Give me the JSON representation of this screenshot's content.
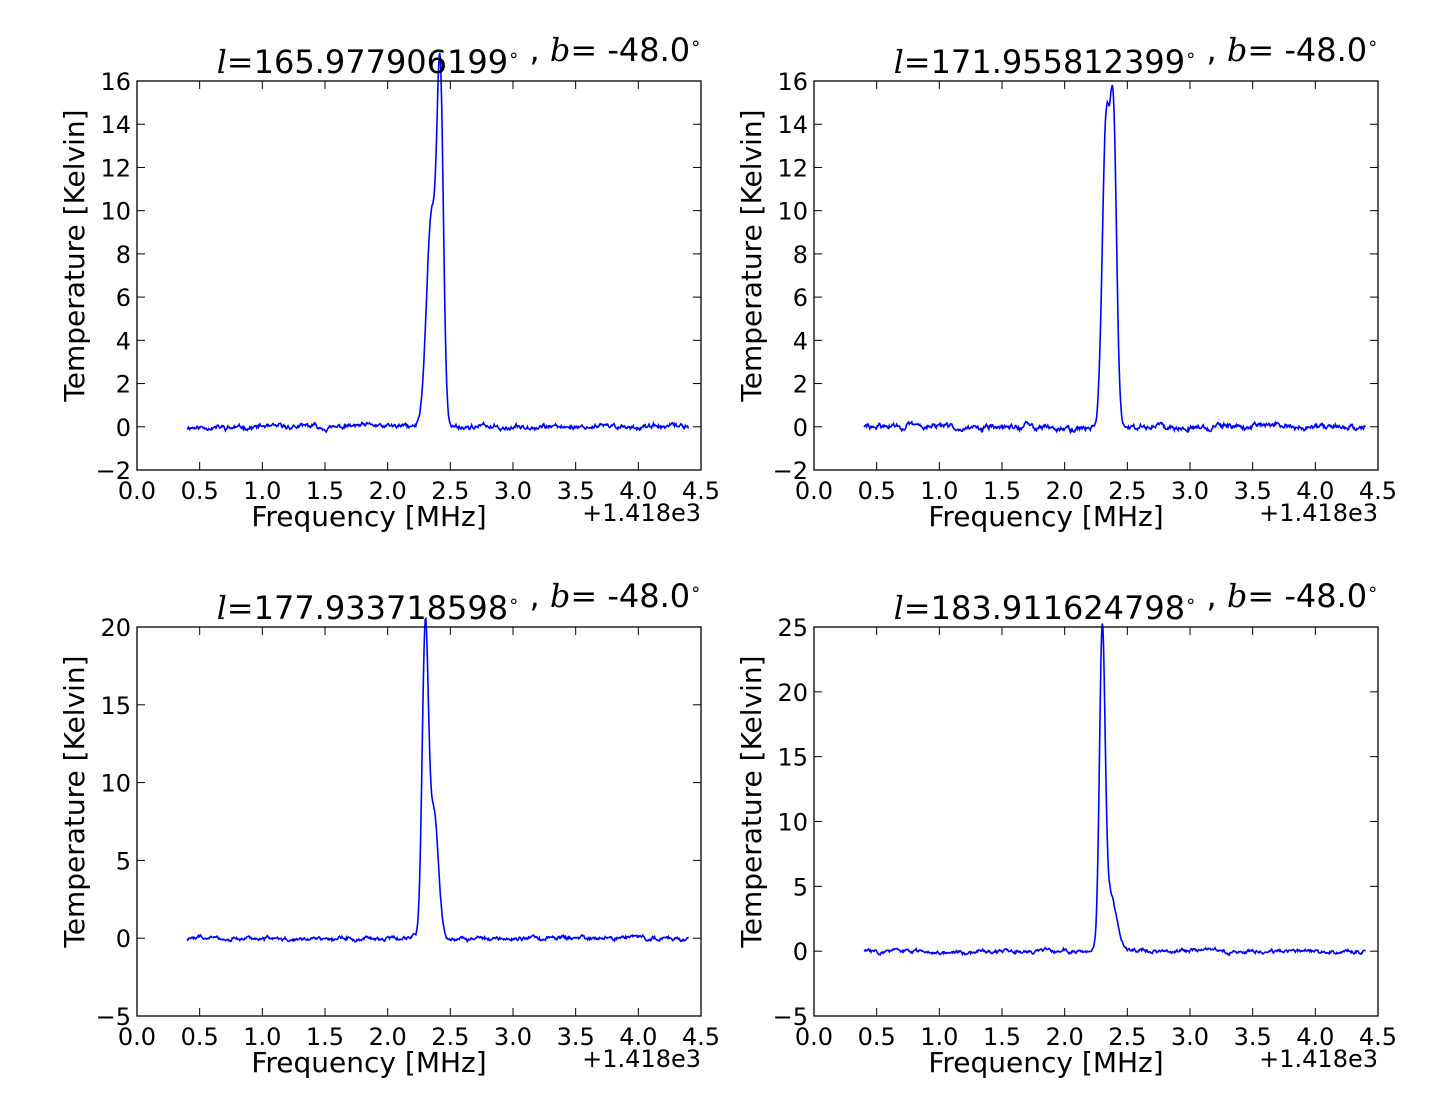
{
  "chart_data": [
    {
      "type": "line",
      "title": {
        "l_prefix": "l",
        "eq": "=",
        "l_value": "165.977906199",
        "deg": "∘",
        "sep": " , ",
        "b_prefix": "b",
        "b_value": "-48.0"
      },
      "xlabel": "Frequency [MHz]",
      "ylabel": "Temperature [Kelvin]",
      "x_offset_label": "+1.418e3",
      "xlim": [
        0.0,
        4.5
      ],
      "ylim": [
        -2,
        16
      ],
      "xticks": [
        "0.0",
        "0.5",
        "1.0",
        "1.5",
        "2.0",
        "2.5",
        "3.0",
        "3.5",
        "4.0",
        "4.5"
      ],
      "yticks": [
        "−2",
        "0",
        "2",
        "4",
        "6",
        "8",
        "10",
        "12",
        "14",
        "16"
      ],
      "x_range": [
        0.4,
        4.4
      ],
      "line_color": "#0000ff",
      "series": [
        {
          "peaks": [
            {
              "center": 2.35,
              "height": 9.8,
              "width": 0.04
            },
            {
              "center": 2.42,
              "height": 15.1,
              "width": 0.025
            }
          ],
          "noise": 0.3,
          "seed": 11
        }
      ]
    },
    {
      "type": "line",
      "title": {
        "l_prefix": "l",
        "eq": "=",
        "l_value": "171.955812399",
        "deg": "∘",
        "sep": " , ",
        "b_prefix": "b",
        "b_value": "-48.0"
      },
      "xlabel": "Frequency [MHz]",
      "ylabel": "Temperature [Kelvin]",
      "x_offset_label": "+1.418e3",
      "xlim": [
        0.0,
        4.5
      ],
      "ylim": [
        -2,
        16
      ],
      "xticks": [
        "0.0",
        "0.5",
        "1.0",
        "1.5",
        "2.0",
        "2.5",
        "3.0",
        "3.5",
        "4.0",
        "4.5"
      ],
      "yticks": [
        "−2",
        "0",
        "2",
        "4",
        "6",
        "8",
        "10",
        "12",
        "14",
        "16"
      ],
      "x_range": [
        0.4,
        4.4
      ],
      "line_color": "#0000ff",
      "series": [
        {
          "peaks": [
            {
              "center": 2.33,
              "height": 13.9,
              "width": 0.03
            },
            {
              "center": 2.39,
              "height": 13.3,
              "width": 0.025
            }
          ],
          "noise": 0.35,
          "seed": 29
        }
      ]
    },
    {
      "type": "line",
      "title": {
        "l_prefix": "l",
        "eq": "=",
        "l_value": "177.933718598",
        "deg": "∘",
        "sep": " , ",
        "b_prefix": "b",
        "b_value": "-48.0"
      },
      "xlabel": "Frequency [MHz]",
      "ylabel": "Temperature [Kelvin]",
      "x_offset_label": "+1.418e3",
      "xlim": [
        0.0,
        4.5
      ],
      "ylim": [
        -5,
        20
      ],
      "xticks": [
        "0.0",
        "0.5",
        "1.0",
        "1.5",
        "2.0",
        "2.5",
        "3.0",
        "3.5",
        "4.0",
        "4.5"
      ],
      "yticks": [
        "−5",
        "0",
        "5",
        "10",
        "15",
        "20"
      ],
      "x_range": [
        0.4,
        4.4
      ],
      "line_color": "#0000ff",
      "series": [
        {
          "peaks": [
            {
              "center": 2.3,
              "height": 19.4,
              "width": 0.025
            },
            {
              "center": 2.37,
              "height": 8.0,
              "width": 0.035
            }
          ],
          "noise": 0.35,
          "seed": 47
        }
      ]
    },
    {
      "type": "line",
      "title": {
        "l_prefix": "l",
        "eq": "=",
        "l_value": "183.911624798",
        "deg": "∘",
        "sep": " , ",
        "b_prefix": "b",
        "b_value": "-48.0"
      },
      "xlabel": "Frequency [MHz]",
      "ylabel": "Temperature [Kelvin]",
      "x_offset_label": "+1.418e3",
      "xlim": [
        0.0,
        4.5
      ],
      "ylim": [
        -5,
        25
      ],
      "xticks": [
        "0.0",
        "0.5",
        "1.0",
        "1.5",
        "2.0",
        "2.5",
        "3.0",
        "3.5",
        "4.0",
        "4.5"
      ],
      "yticks": [
        "−5",
        "0",
        "5",
        "10",
        "15",
        "20",
        "25"
      ],
      "x_range": [
        0.4,
        4.4
      ],
      "line_color": "#0000ff",
      "series": [
        {
          "peaks": [
            {
              "center": 2.3,
              "height": 23.0,
              "width": 0.022
            },
            {
              "center": 2.36,
              "height": 4.5,
              "width": 0.05
            }
          ],
          "noise": 0.4,
          "seed": 83
        }
      ]
    }
  ]
}
